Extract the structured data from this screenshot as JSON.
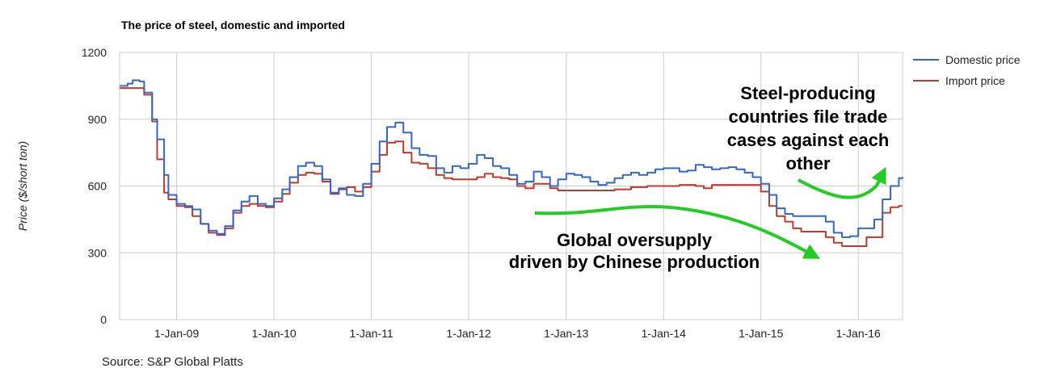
{
  "title": "The price of steel, domestic and imported",
  "source": "Source: S&P Global Platts",
  "colors": {
    "domestic": "#3366cc",
    "import": "#c0392b",
    "arrow": "#22cc22",
    "grid": "#cccccc"
  },
  "chart_data": {
    "type": "line",
    "ylabel": "Price ($/short ton)",
    "ylim": [
      0,
      1200
    ],
    "yticks": [
      0,
      300,
      600,
      900,
      1200
    ],
    "xlim": [
      "2008-06-01",
      "2016-06-15"
    ],
    "xticks": [
      "1-Jan-09",
      "1-Jan-10",
      "1-Jan-11",
      "1-Jan-12",
      "1-Jan-13",
      "1-Jan-14",
      "1-Jan-15",
      "1-Jan-16"
    ],
    "grid": true,
    "legend_position": "top-right",
    "series": [
      {
        "name": "Domestic price",
        "color": "#3366cc",
        "points": [
          [
            "2008-06-01",
            1050
          ],
          [
            "2008-07-01",
            1060
          ],
          [
            "2008-07-20",
            1075
          ],
          [
            "2008-08-15",
            1070
          ],
          [
            "2008-09-01",
            1020
          ],
          [
            "2008-10-01",
            900
          ],
          [
            "2008-10-20",
            810
          ],
          [
            "2008-11-15",
            650
          ],
          [
            "2008-12-01",
            560
          ],
          [
            "2009-01-01",
            520
          ],
          [
            "2009-02-01",
            510
          ],
          [
            "2009-03-01",
            495
          ],
          [
            "2009-04-01",
            430
          ],
          [
            "2009-05-01",
            400
          ],
          [
            "2009-06-01",
            385
          ],
          [
            "2009-07-01",
            420
          ],
          [
            "2009-08-01",
            490
          ],
          [
            "2009-09-01",
            530
          ],
          [
            "2009-10-01",
            555
          ],
          [
            "2009-11-01",
            520
          ],
          [
            "2009-12-01",
            510
          ],
          [
            "2010-01-01",
            545
          ],
          [
            "2010-02-01",
            585
          ],
          [
            "2010-03-01",
            640
          ],
          [
            "2010-04-01",
            690
          ],
          [
            "2010-05-01",
            705
          ],
          [
            "2010-06-01",
            690
          ],
          [
            "2010-07-01",
            630
          ],
          [
            "2010-08-01",
            570
          ],
          [
            "2010-09-01",
            590
          ],
          [
            "2010-10-01",
            560
          ],
          [
            "2010-11-01",
            555
          ],
          [
            "2010-12-01",
            610
          ],
          [
            "2011-01-01",
            700
          ],
          [
            "2011-02-01",
            800
          ],
          [
            "2011-03-01",
            865
          ],
          [
            "2011-04-01",
            885
          ],
          [
            "2011-05-01",
            840
          ],
          [
            "2011-06-01",
            770
          ],
          [
            "2011-07-01",
            740
          ],
          [
            "2011-08-01",
            735
          ],
          [
            "2011-09-01",
            680
          ],
          [
            "2011-10-01",
            660
          ],
          [
            "2011-11-01",
            690
          ],
          [
            "2011-12-01",
            680
          ],
          [
            "2012-01-01",
            700
          ],
          [
            "2012-02-01",
            740
          ],
          [
            "2012-03-01",
            725
          ],
          [
            "2012-04-01",
            690
          ],
          [
            "2012-05-01",
            680
          ],
          [
            "2012-06-01",
            650
          ],
          [
            "2012-07-01",
            610
          ],
          [
            "2012-08-01",
            620
          ],
          [
            "2012-09-01",
            665
          ],
          [
            "2012-10-01",
            640
          ],
          [
            "2012-11-01",
            600
          ],
          [
            "2012-12-01",
            630
          ],
          [
            "2013-01-01",
            655
          ],
          [
            "2013-02-01",
            650
          ],
          [
            "2013-03-01",
            640
          ],
          [
            "2013-04-01",
            620
          ],
          [
            "2013-05-01",
            605
          ],
          [
            "2013-06-01",
            615
          ],
          [
            "2013-07-01",
            635
          ],
          [
            "2013-08-01",
            650
          ],
          [
            "2013-09-01",
            660
          ],
          [
            "2013-10-01",
            650
          ],
          [
            "2013-11-01",
            660
          ],
          [
            "2013-12-01",
            675
          ],
          [
            "2014-01-01",
            680
          ],
          [
            "2014-02-01",
            680
          ],
          [
            "2014-03-01",
            665
          ],
          [
            "2014-04-01",
            670
          ],
          [
            "2014-05-01",
            695
          ],
          [
            "2014-06-01",
            685
          ],
          [
            "2014-07-01",
            675
          ],
          [
            "2014-08-01",
            680
          ],
          [
            "2014-09-01",
            685
          ],
          [
            "2014-10-01",
            675
          ],
          [
            "2014-11-01",
            660
          ],
          [
            "2014-12-01",
            640
          ],
          [
            "2015-01-01",
            610
          ],
          [
            "2015-02-01",
            560
          ],
          [
            "2015-03-01",
            500
          ],
          [
            "2015-04-01",
            475
          ],
          [
            "2015-05-01",
            465
          ],
          [
            "2015-06-01",
            465
          ],
          [
            "2015-07-01",
            465
          ],
          [
            "2015-08-01",
            465
          ],
          [
            "2015-09-01",
            440
          ],
          [
            "2015-10-01",
            390
          ],
          [
            "2015-11-01",
            370
          ],
          [
            "2015-12-01",
            375
          ],
          [
            "2016-01-01",
            410
          ],
          [
            "2016-02-01",
            410
          ],
          [
            "2016-03-01",
            450
          ],
          [
            "2016-04-01",
            540
          ],
          [
            "2016-05-01",
            600
          ],
          [
            "2016-06-01",
            635
          ],
          [
            "2016-06-15",
            640
          ]
        ]
      },
      {
        "name": "Import price",
        "color": "#c0392b",
        "points": [
          [
            "2008-06-01",
            1040
          ],
          [
            "2008-07-01",
            1040
          ],
          [
            "2008-08-15",
            1040
          ],
          [
            "2008-09-01",
            1010
          ],
          [
            "2008-10-01",
            890
          ],
          [
            "2008-10-20",
            720
          ],
          [
            "2008-11-15",
            570
          ],
          [
            "2008-12-01",
            540
          ],
          [
            "2009-01-01",
            510
          ],
          [
            "2009-02-01",
            505
          ],
          [
            "2009-03-01",
            465
          ],
          [
            "2009-04-01",
            430
          ],
          [
            "2009-05-01",
            390
          ],
          [
            "2009-06-01",
            380
          ],
          [
            "2009-07-01",
            410
          ],
          [
            "2009-08-01",
            480
          ],
          [
            "2009-09-01",
            510
          ],
          [
            "2009-10-01",
            520
          ],
          [
            "2009-11-01",
            510
          ],
          [
            "2009-12-01",
            505
          ],
          [
            "2010-01-01",
            530
          ],
          [
            "2010-02-01",
            565
          ],
          [
            "2010-03-01",
            615
          ],
          [
            "2010-04-01",
            650
          ],
          [
            "2010-05-01",
            660
          ],
          [
            "2010-06-01",
            655
          ],
          [
            "2010-07-01",
            620
          ],
          [
            "2010-08-01",
            565
          ],
          [
            "2010-09-01",
            585
          ],
          [
            "2010-10-01",
            595
          ],
          [
            "2010-11-01",
            575
          ],
          [
            "2010-12-01",
            595
          ],
          [
            "2011-01-01",
            665
          ],
          [
            "2011-02-01",
            740
          ],
          [
            "2011-03-01",
            795
          ],
          [
            "2011-04-01",
            800
          ],
          [
            "2011-05-01",
            750
          ],
          [
            "2011-06-01",
            705
          ],
          [
            "2011-07-01",
            700
          ],
          [
            "2011-08-01",
            680
          ],
          [
            "2011-09-01",
            650
          ],
          [
            "2011-10-01",
            635
          ],
          [
            "2011-11-01",
            630
          ],
          [
            "2011-12-01",
            630
          ],
          [
            "2012-01-01",
            630
          ],
          [
            "2012-02-01",
            640
          ],
          [
            "2012-03-01",
            655
          ],
          [
            "2012-04-01",
            640
          ],
          [
            "2012-05-01",
            635
          ],
          [
            "2012-06-01",
            630
          ],
          [
            "2012-07-01",
            600
          ],
          [
            "2012-08-01",
            590
          ],
          [
            "2012-09-01",
            610
          ],
          [
            "2012-10-01",
            610
          ],
          [
            "2012-11-01",
            590
          ],
          [
            "2012-12-01",
            580
          ],
          [
            "2013-01-01",
            580
          ],
          [
            "2013-03-01",
            580
          ],
          [
            "2013-05-01",
            580
          ],
          [
            "2013-07-01",
            585
          ],
          [
            "2013-09-01",
            595
          ],
          [
            "2013-11-01",
            600
          ],
          [
            "2013-12-01",
            600
          ],
          [
            "2014-01-01",
            600
          ],
          [
            "2014-03-01",
            605
          ],
          [
            "2014-05-01",
            600
          ],
          [
            "2014-06-01",
            590
          ],
          [
            "2014-07-01",
            605
          ],
          [
            "2014-09-01",
            605
          ],
          [
            "2014-11-01",
            605
          ],
          [
            "2014-12-01",
            605
          ],
          [
            "2015-01-01",
            575
          ],
          [
            "2015-02-01",
            510
          ],
          [
            "2015-03-01",
            465
          ],
          [
            "2015-04-01",
            440
          ],
          [
            "2015-05-01",
            410
          ],
          [
            "2015-06-01",
            395
          ],
          [
            "2015-07-01",
            395
          ],
          [
            "2015-08-01",
            395
          ],
          [
            "2015-09-01",
            370
          ],
          [
            "2015-10-01",
            345
          ],
          [
            "2015-11-01",
            330
          ],
          [
            "2015-12-01",
            330
          ],
          [
            "2016-01-01",
            330
          ],
          [
            "2016-02-01",
            370
          ],
          [
            "2016-03-01",
            370
          ],
          [
            "2016-04-01",
            480
          ],
          [
            "2016-05-01",
            505
          ],
          [
            "2016-06-01",
            510
          ],
          [
            "2016-06-15",
            510
          ]
        ]
      }
    ],
    "annotations": [
      {
        "lines": [
          "Steel-producing",
          "countries file trade",
          "cases against each",
          "other"
        ]
      },
      {
        "lines": [
          "Global oversupply",
          "driven by Chinese production"
        ]
      }
    ]
  }
}
